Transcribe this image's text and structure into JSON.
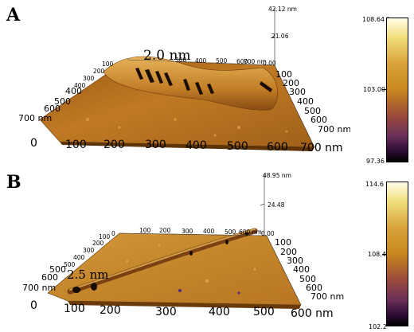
{
  "panel_a": {
    "letter": "A",
    "height_annotation": "2.0 nm",
    "z_top_label": "42.12 nm",
    "z_mid_label": "21.06",
    "back_x_ticks": [
      "0.00",
      "100",
      "200",
      "300",
      "400",
      "500",
      "600",
      "700 nm"
    ],
    "back_y_ticks": [
      "700",
      "600",
      "500",
      "400",
      "300",
      "200",
      "100",
      "0"
    ],
    "left_y_ticks": [
      "0",
      "100",
      "200",
      "300",
      "400",
      "500",
      "600",
      "700 nm"
    ],
    "bottom_x_ticks": [
      "0",
      "100",
      "200",
      "300",
      "400",
      "500",
      "600",
      "700 nm"
    ],
    "right_y_ticks": [
      "100",
      "200",
      "300",
      "400",
      "500",
      "600",
      "700 nm"
    ],
    "colorbar": {
      "max": "108.64 °",
      "mid": "103.00",
      "min": "97.36"
    }
  },
  "panel_b": {
    "letter": "B",
    "height_annotation": "2.5 nm",
    "z_top_label": "48.95 nm",
    "z_mid_label": "24.48",
    "back_x_ticks": [
      "0.00",
      "100",
      "200",
      "300",
      "400",
      "500",
      "600 nm"
    ],
    "back_y_ticks": [
      "700",
      "600",
      "500",
      "400",
      "300",
      "200",
      "100",
      "0"
    ],
    "left_y_ticks": [
      "0",
      "100",
      "200",
      "300",
      "400",
      "500",
      "600",
      "700 nm"
    ],
    "bottom_x_ticks": [
      "0",
      "100",
      "200",
      "300",
      "400",
      "500",
      "600 nm"
    ],
    "right_y_ticks": [
      "100",
      "200",
      "300",
      "400",
      "500",
      "600",
      "700 nm"
    ],
    "colorbar": {
      "max": "114.6 °",
      "mid": "108.4",
      "min": "102.2"
    }
  },
  "colors": {
    "surface_dark": "#6b3a0c",
    "surface_mid": "#b8701c",
    "surface_light": "#d9a043",
    "colorbar_top": "#fffde8",
    "colorbar_mid": "#c8871f",
    "colorbar_low": "#6b2f5a",
    "colorbar_bottom": "#000000"
  }
}
